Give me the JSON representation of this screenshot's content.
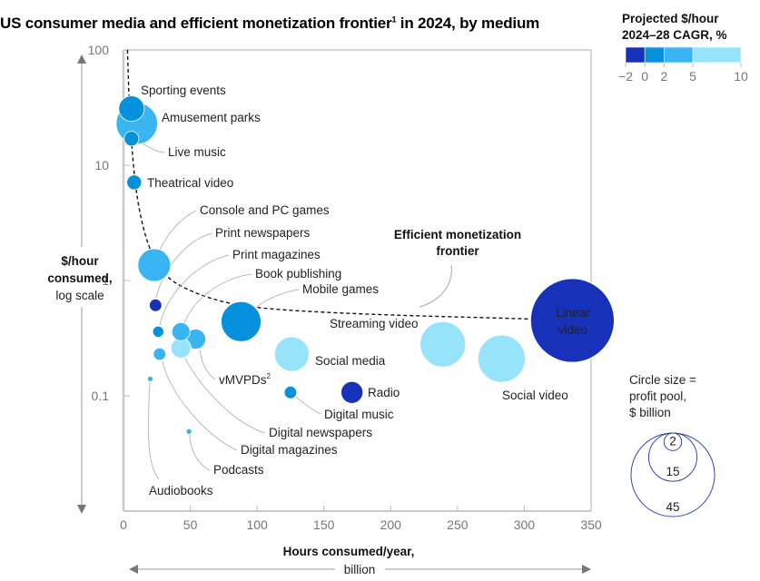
{
  "title": "US consumer media and efficient monetization frontier",
  "title_sup": "1",
  "title_suffix": " in 2024, by medium",
  "chart_data": {
    "type": "scatter",
    "subtype": "bubble",
    "title": "US consumer media and efficient monetization frontier in 2024, by medium",
    "xlabel": "Hours consumed/year,",
    "xlabel_unit": "billion",
    "ylabel": "$/hour consumed,",
    "ylabel_unit": "log scale",
    "xlim": [
      0,
      350
    ],
    "ylim": [
      0.01,
      100
    ],
    "yscale": "log",
    "xticks": [
      0,
      50,
      100,
      150,
      200,
      250,
      300,
      350
    ],
    "yticks": [
      100,
      10,
      1,
      0.1
    ],
    "ytick_labels": [
      "100",
      "10",
      "1",
      "0.1"
    ],
    "color_legend": {
      "title_line1": "Projected $/hour",
      "title_line2": "2024–28 CAGR, %",
      "bins": [
        {
          "from": -2,
          "to": 0,
          "color": "#1732B8"
        },
        {
          "from": 0,
          "to": 2,
          "color": "#0691DC"
        },
        {
          "from": 2,
          "to": 5,
          "color": "#38B5F2"
        },
        {
          "from": 5,
          "to": 10,
          "color": "#98E3FC"
        }
      ],
      "tick_labels": [
        "−2",
        "0",
        "2",
        "5",
        "10"
      ]
    },
    "size_legend": {
      "title_line1": "Circle size =",
      "title_line2": "profit pool,",
      "title_line3": "$ billion",
      "values": [
        2,
        15,
        45
      ]
    },
    "frontier_label_line1": "Efficient monetization",
    "frontier_label_line2": "frontier",
    "frontier": [
      [
        3,
        100
      ],
      [
        4,
        40
      ],
      [
        6,
        15
      ],
      [
        10,
        5
      ],
      [
        18,
        2
      ],
      [
        30,
        1.1
      ],
      [
        50,
        0.8
      ],
      [
        80,
        0.62
      ],
      [
        120,
        0.55
      ],
      [
        200,
        0.5
      ],
      [
        290,
        0.47
      ],
      [
        336,
        0.45
      ]
    ],
    "points": [
      {
        "label": "Sporting events",
        "x": 6,
        "y": 31,
        "profit": 4.2,
        "cagr_bin": 1
      },
      {
        "label": "Amusement parks",
        "x": 10,
        "y": 23,
        "profit": 11,
        "cagr_bin": 2
      },
      {
        "label": "Live music",
        "x": 6,
        "y": 17,
        "profit": 1.4,
        "cagr_bin": 1
      },
      {
        "label": "Theatrical video",
        "x": 8,
        "y": 7.1,
        "profit": 1.4,
        "cagr_bin": 1
      },
      {
        "label": "Console and PC games",
        "x": 23,
        "y": 1.36,
        "profit": 6.9,
        "cagr_bin": 2
      },
      {
        "label": "Print newspapers",
        "x": 24,
        "y": 0.61,
        "profit": 1.0,
        "cagr_bin": 0
      },
      {
        "label": "Print magazines",
        "x": 26,
        "y": 0.36,
        "profit": 0.8,
        "cagr_bin": 1
      },
      {
        "label": "Book publishing",
        "x": 43,
        "y": 0.36,
        "profit": 2.1,
        "cagr_bin": 2
      },
      {
        "label": "Mobile games",
        "x": 88,
        "y": 0.44,
        "profit": 10.3,
        "cagr_bin": 1
      },
      {
        "label": "vMVPDs",
        "label_sup": "2",
        "x": 54,
        "y": 0.31,
        "profit": 2.6,
        "cagr_bin": 2
      },
      {
        "label": "Digital newspapers",
        "x": 43,
        "y": 0.26,
        "profit": 2.6,
        "cagr_bin": 3
      },
      {
        "label": "Digital magazines",
        "x": 27,
        "y": 0.23,
        "profit": 1.0,
        "cagr_bin": 2
      },
      {
        "label": "Audiobooks",
        "x": 20,
        "y": 0.14,
        "profit": 0.2,
        "cagr_bin": 2
      },
      {
        "label": "Podcasts",
        "x": 49,
        "y": 0.049,
        "profit": 0.2,
        "cagr_bin": 2
      },
      {
        "label": "Streaming video",
        "x": 239,
        "y": 0.28,
        "profit": 13.3,
        "cagr_bin": 3
      },
      {
        "label": "Social media",
        "x": 126,
        "y": 0.23,
        "profit": 7.7,
        "cagr_bin": 3
      },
      {
        "label": "Social video",
        "x": 283,
        "y": 0.21,
        "profit": 14.4,
        "cagr_bin": 3
      },
      {
        "label": "Radio",
        "x": 171,
        "y": 0.107,
        "profit": 3.1,
        "cagr_bin": 0
      },
      {
        "label": "Digital music",
        "x": 125,
        "y": 0.107,
        "profit": 1.0,
        "cagr_bin": 1
      },
      {
        "label": "Linear video",
        "x": 336,
        "y": 0.45,
        "profit": 45,
        "cagr_bin": 0
      }
    ]
  }
}
